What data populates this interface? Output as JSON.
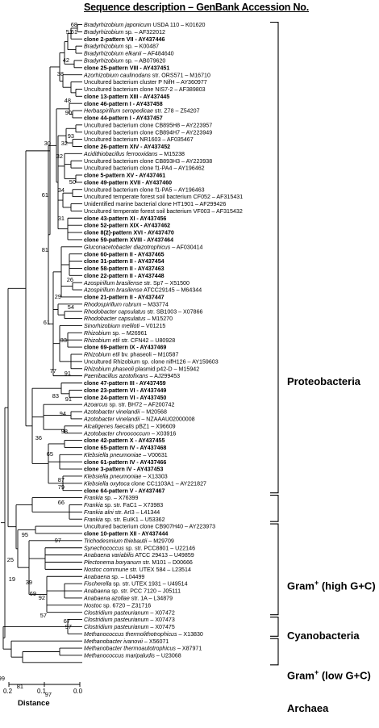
{
  "header": "Sequence description – GenBank Accession No.",
  "leaves": [
    {
      "label": "Bradyrhizobium japonicum USDA 110 – K01620",
      "bold": false,
      "italic_part": "Bradyrhizobium japonicum"
    },
    {
      "label": "Bradyrhizobium sp. – AF322012",
      "bold": false,
      "italic_part": "Bradyrhizobium"
    },
    {
      "label": "clone 2-pattern VII - AY437446",
      "bold": true,
      "italic_part": ""
    },
    {
      "label": "Bradyrhizobium sp. – K00487",
      "bold": false,
      "italic_part": "Bradyrhizobium"
    },
    {
      "label": "Bradyrhizobium elkanii – AF484640",
      "bold": false,
      "italic_part": "Bradyrhizobium elkanii"
    },
    {
      "label": "Bradyrhizobium sp. – AB079620",
      "bold": false,
      "italic_part": "Bradyrhizobium"
    },
    {
      "label": "clone 25-pattern VIII - AY437451",
      "bold": true,
      "italic_part": ""
    },
    {
      "label": "Azorhizobium caulinodans str. ORS571 – M16710",
      "bold": false,
      "italic_part": "Azorhizobium caulinodans"
    },
    {
      "label": "Uncultured bacterium cluster P NifH – AY360977",
      "bold": false,
      "italic_part": ""
    },
    {
      "label": "Uncultured bacterium clone NIS7-2 – AF389803",
      "bold": false,
      "italic_part": ""
    },
    {
      "label": "clone 13-pattern XIII - AY437445",
      "bold": true,
      "italic_part": ""
    },
    {
      "label": "clone 46-pattern I - AY437458",
      "bold": true,
      "italic_part": ""
    },
    {
      "label": "Herbaspirillum seropedicae str. Z78 – Z54207",
      "bold": false,
      "italic_part": "Herbaspirillum seropedicae"
    },
    {
      "label": "clone 44-pattern I - AY437457",
      "bold": true,
      "italic_part": ""
    },
    {
      "label": "Uncultured bacterium clone CB895H8 – AY223957",
      "bold": false,
      "italic_part": ""
    },
    {
      "label": "Uncultured bacterium clone CB894H7 – AY223949",
      "bold": false,
      "italic_part": ""
    },
    {
      "label": "Uncultured bacterium NR1603 – AF035467",
      "bold": false,
      "italic_part": ""
    },
    {
      "label": "clone 26-pattern XIV - AY437452",
      "bold": true,
      "italic_part": ""
    },
    {
      "label": "Acidithiobacillus ferrooxidans – M15238",
      "bold": false,
      "italic_part": "Acidithiobacillus ferrooxidans"
    },
    {
      "label": "Uncultured bacterium clone CB893H3 – AY223938",
      "bold": false,
      "italic_part": ""
    },
    {
      "label": "Uncultured bacterium clone f1-PA4 – AY196462",
      "bold": false,
      "italic_part": ""
    },
    {
      "label": "clone 5-pattern XV - AY437461",
      "bold": true,
      "italic_part": ""
    },
    {
      "label": "clone 49-pattern XVII - AY437460",
      "bold": true,
      "italic_part": ""
    },
    {
      "label": "Uncultured bacterium clone f1-PA5 – AY196463",
      "bold": false,
      "italic_part": ""
    },
    {
      "label": "Uncultured temperate forest soil bacterium CF052 – AF315431",
      "bold": false,
      "italic_part": ""
    },
    {
      "label": "Unidentified marine bacterial clone HT1901 – AF299426",
      "bold": false,
      "italic_part": ""
    },
    {
      "label": "Uncultured temperate forest soil bacterium VF003 – AF315432",
      "bold": false,
      "italic_part": ""
    },
    {
      "label": "clone 43-pattern XI - AY437456",
      "bold": true,
      "italic_part": ""
    },
    {
      "label": "clone 52-pattern XIX - AY437462",
      "bold": true,
      "italic_part": ""
    },
    {
      "label": "clone 8(2)-pattern XVI - AY437470",
      "bold": true,
      "italic_part": ""
    },
    {
      "label": "clone 59-pattern XVIII - AY437464",
      "bold": true,
      "italic_part": ""
    },
    {
      "label": "Gluconacetobacter diazotrophicus – AF030414",
      "bold": false,
      "italic_part": "Gluconacetobacter diazotrophicus"
    },
    {
      "label": "clone 60-pattern II - AY437465",
      "bold": true,
      "italic_part": ""
    },
    {
      "label": "clone 31-pattern II - AY437454",
      "bold": true,
      "italic_part": ""
    },
    {
      "label": "clone 58-pattern II - AY437463",
      "bold": true,
      "italic_part": ""
    },
    {
      "label": "clone 22-pattern II - AY437448",
      "bold": true,
      "italic_part": ""
    },
    {
      "label": "Azospirillum brasilense str. Sp7 – X51500",
      "bold": false,
      "italic_part": "Azospirillum brasilense"
    },
    {
      "label": "Azospirillum brasilense ATCC29145 – M64344",
      "bold": false,
      "italic_part": "Azospirillum brasilense"
    },
    {
      "label": "clone 21-pattern II - AY437447",
      "bold": true,
      "italic_part": ""
    },
    {
      "label": "Rhodospirillum rubrum – M33774",
      "bold": false,
      "italic_part": "Rhodospirillum rubrum"
    },
    {
      "label": "Rhodobacter capsulatus str. SB1003 – X07866",
      "bold": false,
      "italic_part": "Rhodobacter capsulatus"
    },
    {
      "label": "Rhodobacter capsulatus – M15270",
      "bold": false,
      "italic_part": "Rhodobacter capsulatus"
    },
    {
      "label": "Sinorhizobium meliloti – V01215",
      "bold": false,
      "italic_part": "Sinorhizobium meliloti"
    },
    {
      "label": "Rhizobium sp. – M26961",
      "bold": false,
      "italic_part": "Rhizobium"
    },
    {
      "label": "Rhizobium etli str. CFN42 – U80928",
      "bold": false,
      "italic_part": "Rhizobium etli"
    },
    {
      "label": "clone 69-pattern IX - AY437469",
      "bold": true,
      "italic_part": ""
    },
    {
      "label": "Rhizobium etli bv. phaseoli – M10587",
      "bold": false,
      "italic_part": "Rhizobium etli"
    },
    {
      "label": "Uncultured Rhizobium sp. clone nifH126 – AY159603",
      "bold": false,
      "italic_part": "Rhizobium"
    },
    {
      "label": "Rhizobium phaseoli plasmid p42-D – M15942",
      "bold": false,
      "italic_part": "Rhizobium phaseoli"
    },
    {
      "label": "Paenibacillus azotofixans – AJ299453",
      "bold": false,
      "italic_part": "Paenibacillus azotofixans"
    },
    {
      "label": "clone 47-pattern III - AY437459",
      "bold": true,
      "italic_part": ""
    },
    {
      "label": "clone 23-pattern VI - AY437449",
      "bold": true,
      "italic_part": ""
    },
    {
      "label": "clone 24-pattern VI - AY437450",
      "bold": true,
      "italic_part": ""
    },
    {
      "label": "Azoarcus sp. str. BH72 – AF200742",
      "bold": false,
      "italic_part": "Azoarcus"
    },
    {
      "label": "Azotobacter vinelandii – M20568",
      "bold": false,
      "italic_part": "Azotobacter vinelandii"
    },
    {
      "label": "Azotobacter vinelandii – NZAAAU02000008",
      "bold": false,
      "italic_part": "Azotobacter vinelandii"
    },
    {
      "label": "Alcaligenes faecalis pBZ1 – X96609",
      "bold": false,
      "italic_part": "Alcaligenes faecalis"
    },
    {
      "label": "Azotobacter chroococcum – X03916",
      "bold": false,
      "italic_part": "Azotobacter chroococcum"
    },
    {
      "label": "clone 42-pattern X - AY437455",
      "bold": true,
      "italic_part": ""
    },
    {
      "label": "clone 65-pattern IV - AY437468",
      "bold": true,
      "italic_part": ""
    },
    {
      "label": "Klebsiella pneumoniae – V00631",
      "bold": false,
      "italic_part": "Klebsiella pneumoniae"
    },
    {
      "label": "clone 61-pattern IV - AY437466",
      "bold": true,
      "italic_part": ""
    },
    {
      "label": "clone 3-pattern IV - AY437453",
      "bold": true,
      "italic_part": ""
    },
    {
      "label": "Klebsiella pneumoniae – X13303",
      "bold": false,
      "italic_part": "Klebsiella pneumoniae"
    },
    {
      "label": "Klebsiella oxytoca clone CC1103A1 – AY221827",
      "bold": false,
      "italic_part": "Klebsiella oxytoca"
    },
    {
      "label": "clone 64-pattern V - AY437467",
      "bold": true,
      "italic_part": ""
    },
    {
      "label": "Frankia sp. – X76399",
      "bold": false,
      "italic_part": "Frankia"
    },
    {
      "label": "Frankia sp. str. FaC1 – X73983",
      "bold": false,
      "italic_part": "Frankia"
    },
    {
      "label": "Frankia alni str. ArI3 – L41344",
      "bold": false,
      "italic_part": "Frankia alni"
    },
    {
      "label": "Frankia sp. str. EuIK1 – U53362",
      "bold": false,
      "italic_part": "Frankia"
    },
    {
      "label": "Uncultured bacterium clone CB907H40 – AY223973",
      "bold": false,
      "italic_part": ""
    },
    {
      "label": "clone 10-pattern XII - AY437444",
      "bold": true,
      "italic_part": ""
    },
    {
      "label": "Trichodesmium thiebautii – M29709",
      "bold": false,
      "italic_part": "Trichodesmium thiebautii"
    },
    {
      "label": "Synechococcus sp. str. PCC8801 – U22146",
      "bold": false,
      "italic_part": "Synechococcus"
    },
    {
      "label": "Anabaena variabilis ATCC 29413 – U49859",
      "bold": false,
      "italic_part": "Anabaena variabilis"
    },
    {
      "label": "Plectonema boryanum str. M101 – D00666",
      "bold": false,
      "italic_part": "Plectonema boryanum"
    },
    {
      "label": "Nostoc commune str. UTEX 584 – L23514",
      "bold": false,
      "italic_part": "Nostoc commune"
    },
    {
      "label": "Anabaena sp. – L04499",
      "bold": false,
      "italic_part": "Anabaena"
    },
    {
      "label": "Fischerella sp. str. UTEX 1931 – U49514",
      "bold": false,
      "italic_part": "Fischerella"
    },
    {
      "label": "Anabaena sp. str. PCC 7120 – J05111",
      "bold": false,
      "italic_part": "Anabaena"
    },
    {
      "label": "Anabaena azollae str. 1A – L34879",
      "bold": false,
      "italic_part": "Anabaena azollae"
    },
    {
      "label": "Nostoc sp. 6720 – Z31716",
      "bold": false,
      "italic_part": "Nostoc"
    },
    {
      "label": "Clostridium pasteurianum – X07472",
      "bold": false,
      "italic_part": "Clostridium pasteurianum"
    },
    {
      "label": "Clostridium pasteurianum – X07473",
      "bold": false,
      "italic_part": "Clostridium pasteurianum"
    },
    {
      "label": "Clostridium pasteurianum – X07475",
      "bold": false,
      "italic_part": "Clostridium pasteurianum"
    },
    {
      "label": "Methanococcus thermolithotrophicus – X13830",
      "bold": false,
      "italic_part": "Methanococcus thermolithotrophicus"
    },
    {
      "label": "Methanobacter ivanovii – X56071",
      "bold": false,
      "italic_part": "Methanobacter ivanovii"
    },
    {
      "label": "Methanobacter thermoautotrophicus – X87971",
      "bold": false,
      "italic_part": "Methanobacter thermoautotrophicus"
    },
    {
      "label": "Methanococcus maripaludis – U23068",
      "bold": false,
      "italic_part": "Methanococcus maripaludis"
    }
  ],
  "groups": [
    {
      "label": "Proteobacteria",
      "superscript": "",
      "suffix": ""
    },
    {
      "label": "Gram",
      "superscript": "+",
      "suffix": " (high G+C)"
    },
    {
      "label": "Cyanobacteria",
      "superscript": "",
      "suffix": ""
    },
    {
      "label": "Gram",
      "superscript": "+",
      "suffix": " (low G+C)"
    },
    {
      "label": "Archaea",
      "superscript": "",
      "suffix": ""
    }
  ],
  "bootstrap_values": [
    "68",
    "61",
    "51",
    "42",
    "38",
    "48",
    "90",
    "93",
    "32",
    "32",
    "50",
    "30",
    "34",
    "61",
    "31",
    "81",
    "26",
    "29",
    "54",
    "33",
    "91",
    "77",
    "61",
    "83",
    "94",
    "91",
    "98",
    "36",
    "65",
    "87",
    "79",
    "66",
    "95",
    "97",
    "25",
    "19",
    "39",
    "69",
    "92",
    "57",
    "67",
    "97",
    "99",
    "81",
    "97"
  ],
  "scale_bar": {
    "ticks": [
      "0.2",
      "0.1",
      "0.0"
    ],
    "label": "Distance"
  }
}
